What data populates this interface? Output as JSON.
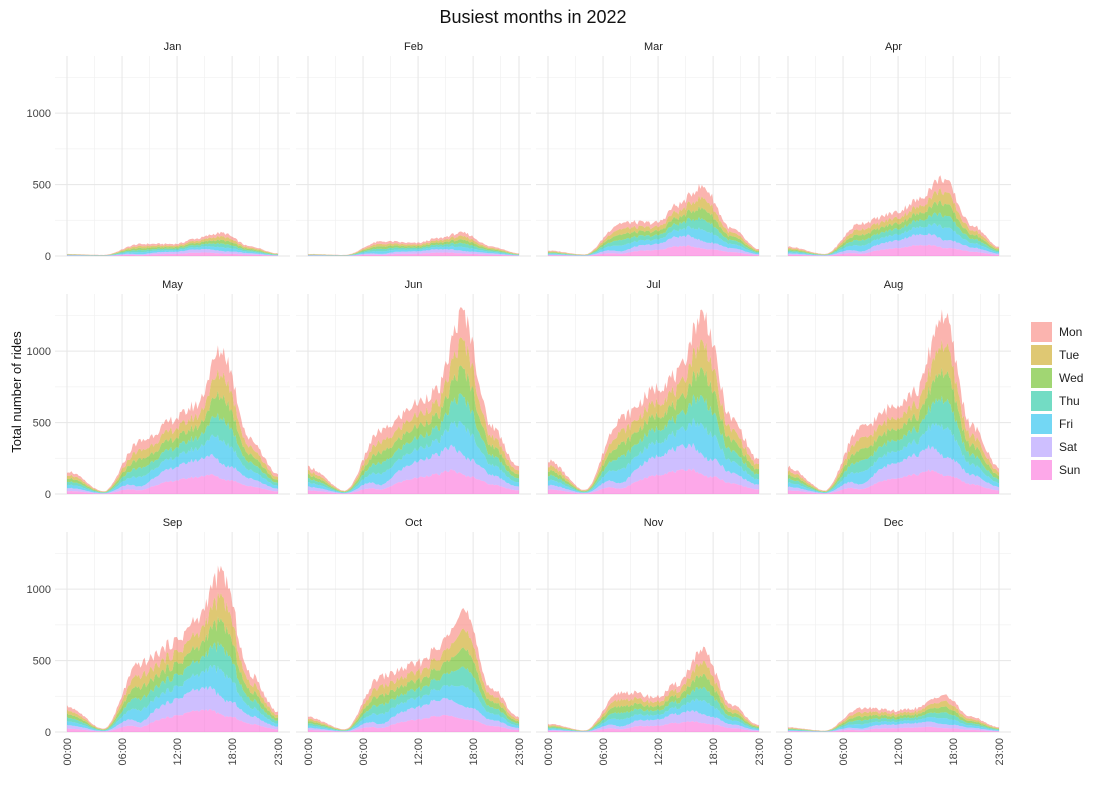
{
  "chart_data": {
    "type": "area",
    "stacked": true,
    "title": "Busiest months in 2022",
    "ylabel": "Total number of rides",
    "xlabel": "",
    "ylim": [
      0,
      1400
    ],
    "y_ticks": [
      0,
      500,
      1000
    ],
    "x_ticks": [
      "00:00",
      "06:00",
      "12:00",
      "18:00",
      "23:00"
    ],
    "grid": true,
    "legend_position": "right",
    "series": [
      {
        "name": "Mon",
        "color": "#F8766D"
      },
      {
        "name": "Tue",
        "color": "#C49A00"
      },
      {
        "name": "Wed",
        "color": "#53B400"
      },
      {
        "name": "Thu",
        "color": "#00C094"
      },
      {
        "name": "Fri",
        "color": "#00B6EB"
      },
      {
        "name": "Sat",
        "color": "#A58AFF"
      },
      {
        "name": "Sun",
        "color": "#FB61D7"
      }
    ],
    "hour_points": [
      0,
      4,
      8,
      12,
      14,
      17,
      20,
      23
    ],
    "panels": [
      {
        "month": "Jan",
        "totals": [
          15,
          8,
          90,
          80,
          110,
          160,
          70,
          20
        ]
      },
      {
        "month": "Feb",
        "totals": [
          15,
          8,
          110,
          85,
          110,
          160,
          70,
          20
        ]
      },
      {
        "month": "Mar",
        "totals": [
          40,
          12,
          250,
          220,
          320,
          480,
          200,
          50
        ]
      },
      {
        "month": "Apr",
        "totals": [
          70,
          15,
          250,
          290,
          350,
          540,
          230,
          70
        ]
      },
      {
        "month": "May",
        "totals": [
          170,
          20,
          400,
          500,
          560,
          1000,
          400,
          150
        ]
      },
      {
        "month": "Jun",
        "totals": [
          200,
          25,
          480,
          600,
          650,
          1250,
          500,
          200
        ]
      },
      {
        "month": "Jul",
        "totals": [
          250,
          30,
          580,
          700,
          750,
          1250,
          550,
          250
        ]
      },
      {
        "month": "Aug",
        "totals": [
          200,
          25,
          500,
          600,
          650,
          1250,
          500,
          200
        ]
      },
      {
        "month": "Sep",
        "totals": [
          190,
          25,
          520,
          600,
          700,
          1100,
          420,
          150
        ]
      },
      {
        "month": "Oct",
        "totals": [
          110,
          20,
          420,
          450,
          520,
          850,
          320,
          110
        ]
      },
      {
        "month": "Nov",
        "totals": [
          60,
          12,
          300,
          230,
          300,
          560,
          200,
          50
        ]
      },
      {
        "month": "Dec",
        "totals": [
          35,
          10,
          180,
          140,
          150,
          260,
          110,
          35
        ]
      }
    ]
  }
}
